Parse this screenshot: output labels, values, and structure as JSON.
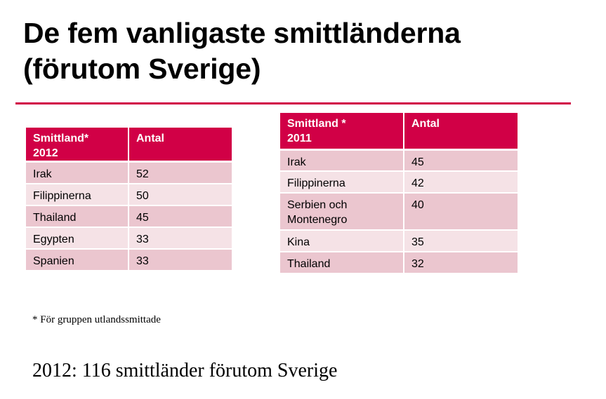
{
  "title": {
    "line1": "De fem vanligaste smittländerna",
    "line2": "(förutom Sverige)"
  },
  "colors": {
    "accent": "#d10046",
    "row_odd": "#ebc6cf",
    "row_even": "#f5e2e6"
  },
  "table_2012": {
    "header": {
      "col1_line1": "Smittland*",
      "col1_line2": "2012",
      "col2": "Antal"
    },
    "rows": [
      {
        "country": "Irak",
        "count": "52"
      },
      {
        "country": "Filippinerna",
        "count": "50"
      },
      {
        "country": "Thailand",
        "count": "45"
      },
      {
        "country": "Egypten",
        "count": "33"
      },
      {
        "country": "Spanien",
        "count": "33"
      }
    ]
  },
  "table_2011": {
    "header": {
      "col1_line1": "Smittland *",
      "col1_line2": "2011",
      "col2": "Antal"
    },
    "rows": [
      {
        "country": "Irak",
        "count": "45"
      },
      {
        "country": "Filippinerna",
        "count": "42"
      },
      {
        "country_line1": "Serbien och",
        "country_line2": "Montenegro",
        "count": "40"
      },
      {
        "country": "Kina",
        "count": "35"
      },
      {
        "country": "Thailand",
        "count": "32"
      }
    ]
  },
  "footnote": "* För gruppen utlandssmittade",
  "summary": "2012: 116 smittländer förutom Sverige"
}
